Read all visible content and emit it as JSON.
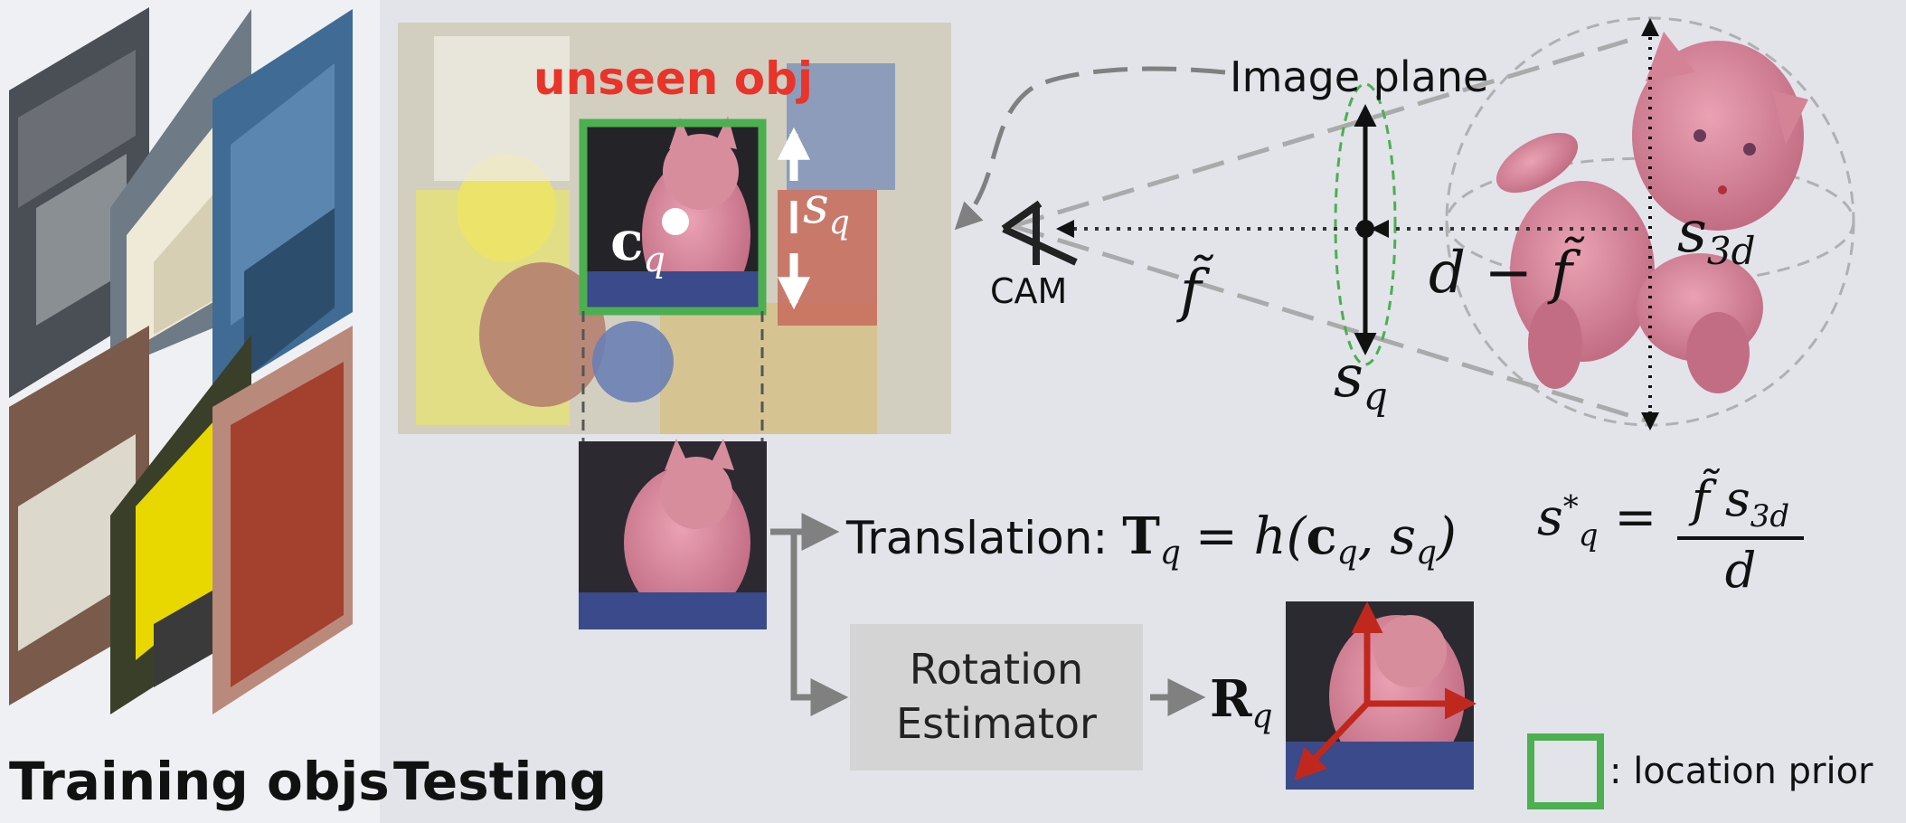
{
  "training": {
    "title": "Training objs"
  },
  "testing": {
    "title": "Testing"
  },
  "labels": {
    "unseen_obj": "unseen obj",
    "image_plane": "Image plane",
    "cam": "CAM",
    "translation_prefix": "Translation:",
    "rotation_line1": "Rotation",
    "rotation_line2": "Estimator",
    "location_prior": ": location prior"
  },
  "math": {
    "c_q": "c",
    "c_q_sub": "q",
    "s_q": "s",
    "s_q_sub": "q",
    "f_tilde": "f̃",
    "d_minus_f": "d − f̃",
    "s_3d": "s",
    "s_3d_sub": "3d",
    "T_q": "T",
    "T_q_sub": "q",
    "h_expr": "= h(",
    "h_args_end": ")",
    "s_star": "s",
    "s_star_sup": "*",
    "s_star_sub": "q",
    "frac_num": "f̃ s",
    "frac_num_sub": "3d",
    "frac_den": "d",
    "R_q": "R",
    "R_q_sub": "q"
  },
  "colors": {
    "red_label": "#e8342a",
    "green_box": "#4caf50",
    "arrow_gray": "#808080",
    "axis_red": "#c0281e",
    "cat_pink": "#d9879b"
  }
}
